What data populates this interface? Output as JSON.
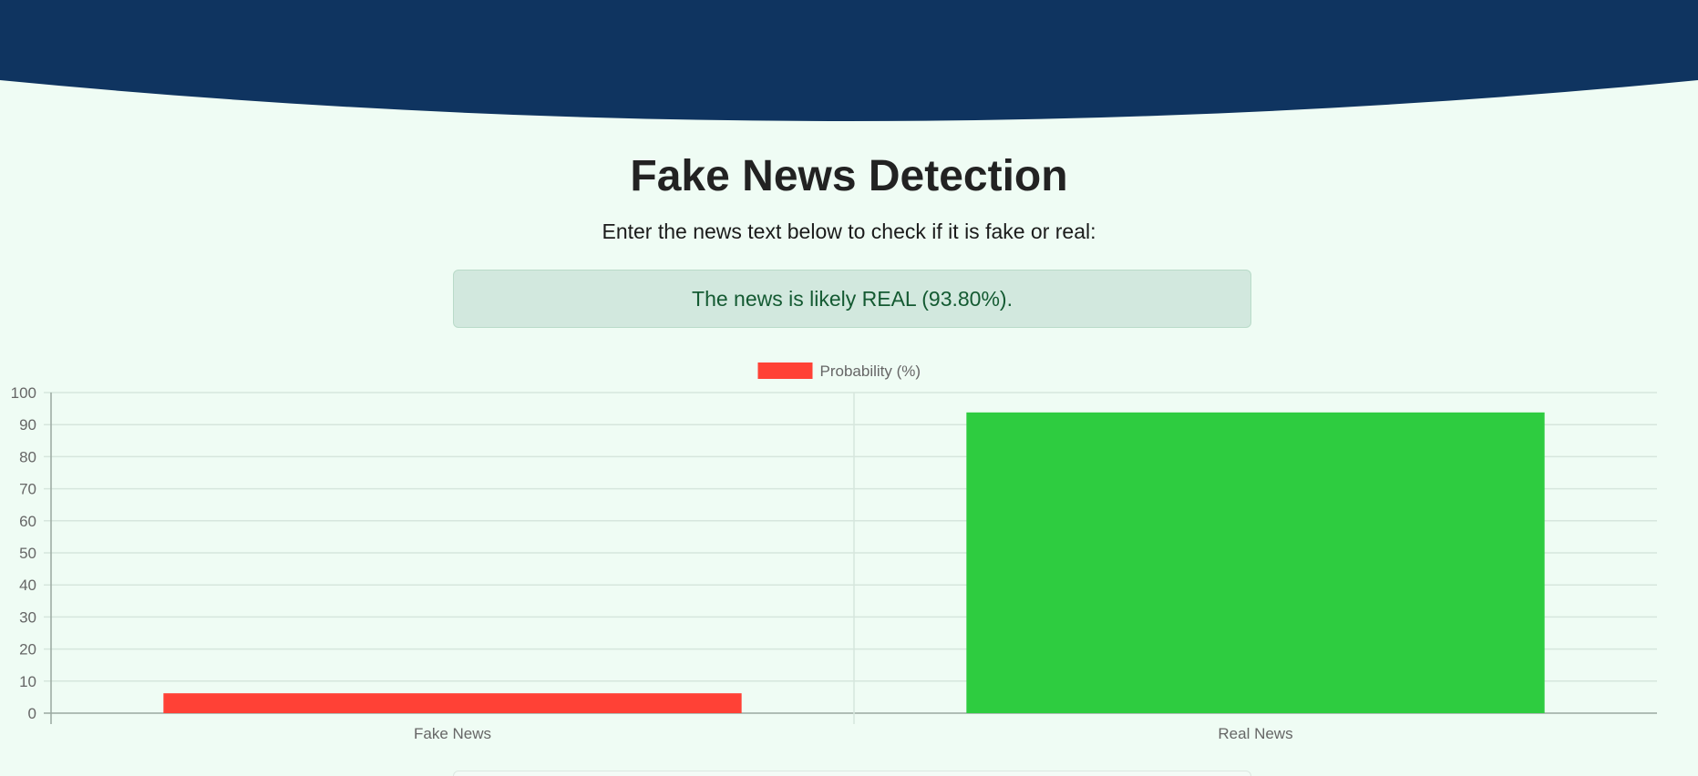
{
  "page": {
    "title": "Fake News Detection",
    "subtitle": "Enter the news text below to check if it is fake or real:",
    "result_message": "The news is likely REAL (93.80%)."
  },
  "colors": {
    "header": "#0f3460",
    "background": "#effcf4",
    "result_bg": "#d2e8de",
    "result_text": "#145a32",
    "fake_bar": "#ff4136",
    "real_bar": "#2ecc40"
  },
  "chart_data": {
    "type": "bar",
    "categories": [
      "Fake News",
      "Real News"
    ],
    "series": [
      {
        "name": "Probability (%)",
        "values": [
          6.2,
          93.8
        ],
        "colors": [
          "#ff4136",
          "#2ecc40"
        ]
      }
    ],
    "title": "",
    "xlabel": "",
    "ylabel": "",
    "ylim": [
      0,
      100
    ],
    "yticks": [
      0,
      10,
      20,
      30,
      40,
      50,
      60,
      70,
      80,
      90,
      100
    ],
    "grid": true,
    "legend_position": "top-center"
  }
}
